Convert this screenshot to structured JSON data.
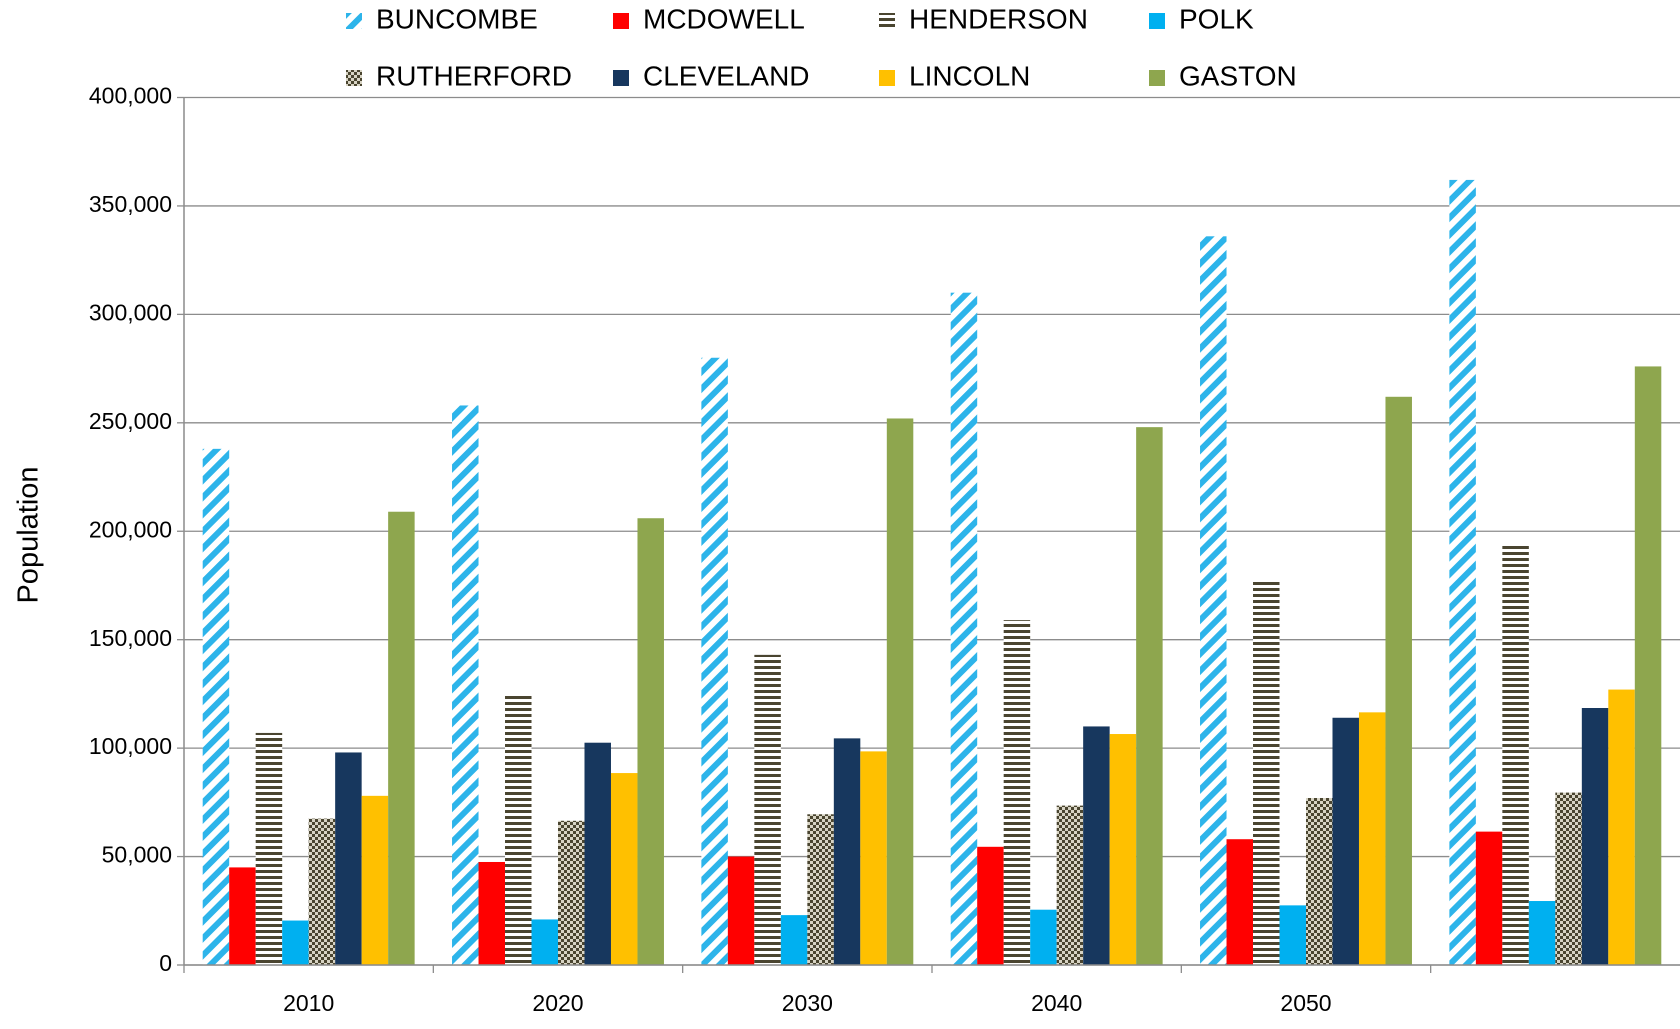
{
  "chart_data": {
    "type": "bar",
    "ylabel": "Population",
    "categories": [
      "2010",
      "2020",
      "2030",
      "2040",
      "2050",
      null
    ],
    "ylim": [
      0,
      400000
    ],
    "yticks": [
      0,
      {
        "value": 50000,
        "label": "50,000"
      },
      {
        "value": 100000,
        "label": "100,000"
      },
      {
        "value": 150000,
        "label": "150,000"
      },
      {
        "value": 200000,
        "label": "200,000"
      },
      {
        "value": 250000,
        "label": "250,000"
      },
      {
        "value": 300000,
        "label": "300,000"
      },
      {
        "value": 350000,
        "label": "350,000"
      },
      {
        "value": 400000,
        "label": "400,000"
      }
    ],
    "grid": true,
    "legend": "top",
    "series": [
      {
        "name": "BUNCOMBE",
        "color": "#2db4ea",
        "pattern": "diagonal",
        "values": [
          238000,
          258000,
          280000,
          310000,
          336000,
          362000
        ]
      },
      {
        "name": "MCDOWELL",
        "color": "#ff0000",
        "values": [
          45000,
          47500,
          50000,
          54500,
          58000,
          61500
        ]
      },
      {
        "name": "HENDERSON",
        "color": "#4a4530",
        "pattern": "horizontal",
        "values": [
          107000,
          125000,
          143000,
          159000,
          177000,
          194000
        ]
      },
      {
        "name": "POLK",
        "color": "#00b0f0",
        "values": [
          20500,
          21000,
          23000,
          25500,
          27500,
          29500
        ]
      },
      {
        "name": "RUTHERFORD",
        "color": "#4a4530",
        "pattern": "checker",
        "values": [
          67500,
          66500,
          69500,
          73500,
          77000,
          79500
        ]
      },
      {
        "name": "CLEVELAND",
        "color": "#17375e",
        "values": [
          98000,
          102500,
          104500,
          110000,
          114000,
          118500
        ]
      },
      {
        "name": "LINCOLN",
        "color": "#ffc000",
        "values": [
          78000,
          88500,
          98500,
          106500,
          116500,
          127000
        ]
      },
      {
        "name": "GASTON",
        "color": "#8ea64e",
        "values": [
          209000,
          206000,
          252000,
          248000,
          262000,
          276000
        ]
      }
    ]
  }
}
